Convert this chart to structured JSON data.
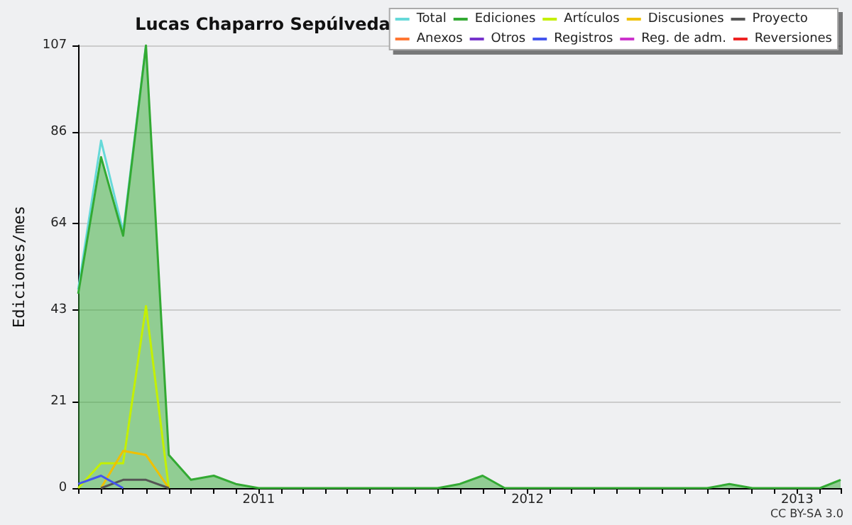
{
  "chart_data": {
    "type": "line",
    "title": "Lucas Chaparro Sepúlveda",
    "ylabel": "Ediciones/mes",
    "x": [
      "2010-05",
      "2010-06",
      "2010-07",
      "2010-08",
      "2010-09",
      "2010-10",
      "2010-11",
      "2010-12",
      "2011-01",
      "2011-02",
      "2011-03",
      "2011-04",
      "2011-05",
      "2011-06",
      "2011-07",
      "2011-08",
      "2011-09",
      "2011-10",
      "2011-11",
      "2011-12",
      "2012-01",
      "2012-02",
      "2012-03",
      "2012-04",
      "2012-05",
      "2012-06",
      "2012-07",
      "2012-08",
      "2012-09",
      "2012-10",
      "2012-11",
      "2012-12",
      "2013-01",
      "2013-02",
      "2013-03"
    ],
    "series": [
      {
        "name": "Total",
        "color": "#66d9d9",
        "values": [
          48,
          84,
          62,
          107,
          null,
          null,
          null,
          null,
          null,
          null,
          null,
          null,
          null,
          null,
          null,
          null,
          null,
          null,
          null,
          null,
          null,
          null,
          null,
          null,
          null,
          null,
          null,
          null,
          null,
          null,
          null,
          null,
          null,
          null,
          null
        ]
      },
      {
        "name": "Ediciones",
        "type": "area",
        "color": "#33aa33",
        "values": [
          47,
          80,
          61,
          107,
          8,
          2,
          3,
          1,
          0,
          0,
          0,
          0,
          0,
          0,
          0,
          0,
          0,
          1,
          3,
          0,
          0,
          0,
          0,
          0,
          0,
          0,
          0,
          0,
          0,
          1,
          0,
          0,
          0,
          0,
          2
        ]
      },
      {
        "name": "Artículos",
        "color": "#c4f000",
        "x": [
          "2010-05",
          "2010-06",
          "2010-07",
          "2010-08",
          "2010-09"
        ],
        "values": [
          0,
          6,
          6,
          44,
          0
        ]
      },
      {
        "name": "Discusiones",
        "color": "#f0c000",
        "x": [
          "2010-06",
          "2010-07",
          "2010-08",
          "2010-09"
        ],
        "values": [
          0,
          9,
          8,
          0
        ]
      },
      {
        "name": "Proyecto",
        "color": "#555555",
        "x": [
          "2010-06",
          "2010-07",
          "2010-08",
          "2010-09"
        ],
        "values": [
          0,
          2,
          2,
          0
        ]
      },
      {
        "name": "Anexos",
        "color": "#ff7733",
        "values": [
          null,
          null,
          null,
          null,
          null,
          null,
          null,
          null,
          null,
          null,
          null,
          null,
          null,
          null,
          null,
          null,
          null,
          null,
          null,
          null,
          null,
          null,
          null,
          null,
          null,
          null,
          null,
          null,
          null,
          null,
          null,
          null,
          null,
          null,
          null
        ]
      },
      {
        "name": "Otros",
        "color": "#7733cc",
        "values": [
          null,
          null,
          null,
          null,
          null,
          null,
          null,
          null,
          null,
          null,
          null,
          null,
          null,
          null,
          null,
          null,
          null,
          null,
          null,
          null,
          null,
          null,
          null,
          null,
          null,
          null,
          null,
          null,
          null,
          null,
          null,
          null,
          null,
          null,
          null
        ]
      },
      {
        "name": "Registros",
        "color": "#4455ee",
        "x": [
          "2010-05",
          "2010-06",
          "2010-07"
        ],
        "values": [
          1,
          3,
          0
        ]
      },
      {
        "name": "Reg. de adm.",
        "color": "#cc33cc",
        "values": [
          null,
          null,
          null,
          null,
          null,
          null,
          null,
          null,
          null,
          null,
          null,
          null,
          null,
          null,
          null,
          null,
          null,
          null,
          null,
          null,
          null,
          null,
          null,
          null,
          null,
          null,
          null,
          null,
          null,
          null,
          null,
          null,
          null,
          null,
          null
        ]
      },
      {
        "name": "Reversiones",
        "color": "#ee2222",
        "values": [
          null,
          null,
          null,
          null,
          null,
          null,
          null,
          null,
          null,
          null,
          null,
          null,
          null,
          null,
          null,
          null,
          null,
          null,
          null,
          null,
          null,
          null,
          null,
          null,
          null,
          null,
          null,
          null,
          null,
          null,
          null,
          null,
          null,
          null,
          null
        ]
      }
    ],
    "xlim": [
      "2010-05",
      "2013-03"
    ],
    "xticks": [
      {
        "value": "2010-05",
        "label": null
      },
      {
        "value": "2010-06",
        "label": null
      },
      {
        "value": "2010-07",
        "label": null
      },
      {
        "value": "2010-08",
        "label": null
      },
      {
        "value": "2010-09",
        "label": null
      },
      {
        "value": "2010-10",
        "label": null
      },
      {
        "value": "2010-11",
        "label": null
      },
      {
        "value": "2010-12",
        "label": null
      },
      {
        "value": "2011-01",
        "label": "2011"
      },
      {
        "value": "2011-02",
        "label": null
      },
      {
        "value": "2011-03",
        "label": null
      },
      {
        "value": "2011-04",
        "label": null
      },
      {
        "value": "2011-05",
        "label": null
      },
      {
        "value": "2011-06",
        "label": null
      },
      {
        "value": "2011-07",
        "label": null
      },
      {
        "value": "2011-08",
        "label": null
      },
      {
        "value": "2011-09",
        "label": null
      },
      {
        "value": "2011-10",
        "label": null
      },
      {
        "value": "2011-11",
        "label": null
      },
      {
        "value": "2011-12",
        "label": null
      },
      {
        "value": "2012-01",
        "label": "2012"
      },
      {
        "value": "2012-02",
        "label": null
      },
      {
        "value": "2012-03",
        "label": null
      },
      {
        "value": "2012-04",
        "label": null
      },
      {
        "value": "2012-05",
        "label": null
      },
      {
        "value": "2012-06",
        "label": null
      },
      {
        "value": "2012-07",
        "label": null
      },
      {
        "value": "2012-08",
        "label": null
      },
      {
        "value": "2012-09",
        "label": null
      },
      {
        "value": "2012-10",
        "label": null
      },
      {
        "value": "2012-11",
        "label": null
      },
      {
        "value": "2012-12",
        "label": null
      },
      {
        "value": "2013-01",
        "label": "2013"
      },
      {
        "value": "2013-02",
        "label": null
      },
      {
        "value": "2013-03",
        "label": null
      }
    ],
    "ylim": [
      0,
      107
    ],
    "yticks": [
      0,
      21,
      43,
      64,
      86,
      107
    ],
    "grid": "y",
    "legend": "top right",
    "marker": "none",
    "annotations": [
      "CC BY-SA 3.0"
    ]
  }
}
